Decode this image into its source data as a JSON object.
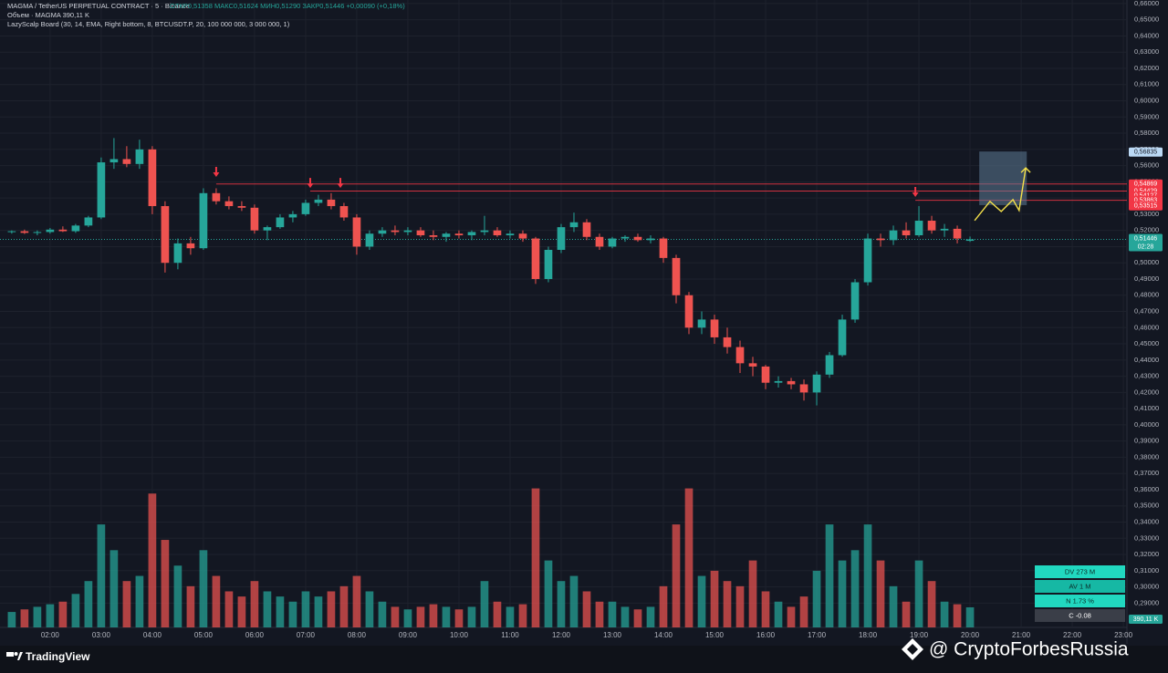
{
  "chart_data": {
    "type": "candlestick",
    "symbol": "MAGMA / TetherUS PERPETUAL CONTRACT · 5 · Binance",
    "ohlc_text": "ОТКР0,51358 МАКС0,51624 МИН0,51290 ЗАКР0,51446 +0,00090 (+0,18%)",
    "volume_text": "Объем · MAGMA 390,11 K",
    "indicator_text": "LazyScalp Board (30, 14, EMA, Right bottom, 8, BTCUSDT.P, 20, 100 000 000, 3 000 000, 1)",
    "up_color": "#26a69a",
    "down_color": "#ef5350",
    "x": [
      1.25,
      1.5,
      1.75,
      2,
      2.25,
      2.5,
      2.75,
      3,
      3.25,
      3.5,
      3.75,
      4,
      4.25,
      4.5,
      4.75,
      5,
      5.25,
      5.5,
      5.75,
      6,
      6.25,
      6.5,
      6.75,
      7,
      7.25,
      7.5,
      7.75,
      8,
      8.25,
      8.5,
      8.75,
      9,
      9.25,
      9.5,
      9.75,
      10,
      10.25,
      10.5,
      10.75,
      11,
      11.25,
      11.5,
      11.75,
      12,
      12.25,
      12.5,
      12.75,
      13,
      13.25,
      13.5,
      13.75,
      14,
      14.25,
      14.5,
      14.75,
      15,
      15.25,
      15.5,
      15.75,
      16,
      16.25,
      16.5,
      16.75,
      17,
      17.25,
      17.5,
      17.75,
      18,
      18.25,
      18.5,
      18.75,
      19,
      19.25,
      19.5,
      19.75,
      20
    ],
    "open": [
      0.519,
      0.5195,
      0.5185,
      0.519,
      0.5205,
      0.5195,
      0.523,
      0.528,
      0.562,
      0.564,
      0.561,
      0.57,
      0.535,
      0.5,
      0.512,
      0.509,
      0.543,
      0.538,
      0.535,
      0.534,
      0.52,
      0.522,
      0.528,
      0.53,
      0.537,
      0.539,
      0.535,
      0.528,
      0.51,
      0.518,
      0.52,
      0.519,
      0.52,
      0.517,
      0.516,
      0.518,
      0.517,
      0.519,
      0.52,
      0.517,
      0.518,
      0.515,
      0.49,
      0.508,
      0.522,
      0.525,
      0.516,
      0.51,
      0.515,
      0.516,
      0.514,
      0.515,
      0.503,
      0.48,
      0.46,
      0.465,
      0.454,
      0.448,
      0.438,
      0.436,
      0.426,
      0.427,
      0.425,
      0.42,
      0.431,
      0.443,
      0.465,
      0.488,
      0.515,
      0.514,
      0.52,
      0.517,
      0.526,
      0.52,
      0.521,
      0.51358
    ],
    "high": [
      0.52,
      0.5205,
      0.52,
      0.5215,
      0.5225,
      0.524,
      0.529,
      0.565,
      0.577,
      0.572,
      0.576,
      0.572,
      0.538,
      0.515,
      0.516,
      0.546,
      0.546,
      0.541,
      0.538,
      0.536,
      0.523,
      0.53,
      0.532,
      0.539,
      0.542,
      0.543,
      0.537,
      0.53,
      0.52,
      0.522,
      0.523,
      0.522,
      0.522,
      0.52,
      0.519,
      0.52,
      0.52,
      0.529,
      0.522,
      0.52,
      0.52,
      0.516,
      0.51,
      0.524,
      0.531,
      0.527,
      0.518,
      0.516,
      0.517,
      0.518,
      0.517,
      0.516,
      0.505,
      0.482,
      0.47,
      0.468,
      0.46,
      0.452,
      0.442,
      0.437,
      0.43,
      0.429,
      0.428,
      0.433,
      0.445,
      0.468,
      0.49,
      0.518,
      0.518,
      0.523,
      0.525,
      0.535,
      0.529,
      0.524,
      0.523,
      0.51624
    ],
    "low": [
      0.518,
      0.5178,
      0.517,
      0.518,
      0.519,
      0.5185,
      0.522,
      0.527,
      0.558,
      0.559,
      0.558,
      0.53,
      0.494,
      0.496,
      0.505,
      0.508,
      0.536,
      0.533,
      0.532,
      0.518,
      0.514,
      0.521,
      0.525,
      0.529,
      0.535,
      0.533,
      0.526,
      0.505,
      0.508,
      0.516,
      0.517,
      0.517,
      0.516,
      0.514,
      0.513,
      0.515,
      0.514,
      0.517,
      0.516,
      0.515,
      0.513,
      0.487,
      0.488,
      0.506,
      0.519,
      0.514,
      0.508,
      0.509,
      0.513,
      0.513,
      0.512,
      0.5,
      0.475,
      0.456,
      0.456,
      0.45,
      0.444,
      0.432,
      0.43,
      0.422,
      0.423,
      0.422,
      0.415,
      0.412,
      0.429,
      0.442,
      0.463,
      0.486,
      0.51,
      0.511,
      0.515,
      0.516,
      0.518,
      0.516,
      0.512,
      0.5129
    ],
    "close": [
      0.5195,
      0.5185,
      0.519,
      0.5205,
      0.5195,
      0.523,
      0.528,
      0.562,
      0.564,
      0.561,
      0.57,
      0.535,
      0.5,
      0.512,
      0.509,
      0.543,
      0.538,
      0.535,
      0.534,
      0.52,
      0.522,
      0.528,
      0.53,
      0.537,
      0.539,
      0.535,
      0.528,
      0.51,
      0.518,
      0.52,
      0.519,
      0.52,
      0.517,
      0.516,
      0.518,
      0.517,
      0.519,
      0.52,
      0.517,
      0.518,
      0.515,
      0.49,
      0.508,
      0.522,
      0.525,
      0.516,
      0.51,
      0.515,
      0.516,
      0.514,
      0.515,
      0.503,
      0.48,
      0.46,
      0.465,
      0.454,
      0.448,
      0.438,
      0.436,
      0.426,
      0.427,
      0.425,
      0.42,
      0.431,
      0.443,
      0.465,
      0.488,
      0.515,
      0.514,
      0.52,
      0.517,
      0.526,
      0.52,
      0.521,
      0.515,
      0.51446
    ],
    "volume": [
      300,
      350,
      400,
      450,
      500,
      650,
      900,
      2000,
      1500,
      900,
      1000,
      2600,
      1700,
      1200,
      800,
      1500,
      1000,
      700,
      600,
      900,
      700,
      600,
      500,
      700,
      600,
      700,
      800,
      1000,
      700,
      500,
      400,
      350,
      400,
      450,
      400,
      350,
      400,
      900,
      500,
      400,
      450,
      2700,
      1300,
      900,
      1000,
      700,
      500,
      500,
      400,
      350,
      400,
      800,
      2000,
      2700,
      1000,
      1100,
      900,
      800,
      1300,
      700,
      500,
      400,
      600,
      1100,
      2000,
      1300,
      1500,
      2000,
      1300,
      800,
      500,
      1300,
      900,
      500,
      450,
      390.11
    ],
    "vlim": [
      0,
      3100
    ],
    "volume_last_label": "390,11 K",
    "xlim": [
      1.02,
      23.07
    ],
    "xticks": [
      {
        "value": 2,
        "label": "02:00"
      },
      {
        "value": 3,
        "label": "03:00"
      },
      {
        "value": 4,
        "label": "04:00"
      },
      {
        "value": 5,
        "label": "05:00"
      },
      {
        "value": 6,
        "label": "06:00"
      },
      {
        "value": 7,
        "label": "07:00"
      },
      {
        "value": 8,
        "label": "08:00"
      },
      {
        "value": 9,
        "label": "09:00"
      },
      {
        "value": 10,
        "label": "10:00"
      },
      {
        "value": 11,
        "label": "11:00"
      },
      {
        "value": 12,
        "label": "12:00"
      },
      {
        "value": 13,
        "label": "13:00"
      },
      {
        "value": 14,
        "label": "14:00"
      },
      {
        "value": 15,
        "label": "15:00"
      },
      {
        "value": 16,
        "label": "16:00"
      },
      {
        "value": 17,
        "label": "17:00"
      },
      {
        "value": 18,
        "label": "18:00"
      },
      {
        "value": 19,
        "label": "19:00"
      },
      {
        "value": 20,
        "label": "20:00"
      },
      {
        "value": 21,
        "label": "21:00"
      },
      {
        "value": 22,
        "label": "22:00"
      },
      {
        "value": 23,
        "label": "23:00"
      }
    ],
    "ylim": [
      0.275,
      0.6622
    ],
    "yticks": [
      {
        "value": 0.29,
        "label": "0,29000"
      },
      {
        "value": 0.3,
        "label": "0,30000"
      },
      {
        "value": 0.31,
        "label": "0,31000"
      },
      {
        "value": 0.32,
        "label": "0,32000"
      },
      {
        "value": 0.33,
        "label": "0,33000"
      },
      {
        "value": 0.34,
        "label": "0,34000"
      },
      {
        "value": 0.35,
        "label": "0,35000"
      },
      {
        "value": 0.36,
        "label": "0,36000"
      },
      {
        "value": 0.37,
        "label": "0,37000"
      },
      {
        "value": 0.38,
        "label": "0,38000"
      },
      {
        "value": 0.39,
        "label": "0,39000"
      },
      {
        "value": 0.4,
        "label": "0,40000"
      },
      {
        "value": 0.41,
        "label": "0,41000"
      },
      {
        "value": 0.42,
        "label": "0,42000"
      },
      {
        "value": 0.43,
        "label": "0,43000"
      },
      {
        "value": 0.44,
        "label": "0,44000"
      },
      {
        "value": 0.45,
        "label": "0,45000"
      },
      {
        "value": 0.46,
        "label": "0,46000"
      },
      {
        "value": 0.47,
        "label": "0,47000"
      },
      {
        "value": 0.48,
        "label": "0,48000"
      },
      {
        "value": 0.49,
        "label": "0,49000"
      },
      {
        "value": 0.5,
        "label": "0,50000"
      },
      {
        "value": 0.51,
        "label": "0,51000"
      },
      {
        "value": 0.52,
        "label": "0,52000"
      },
      {
        "value": 0.53,
        "label": "0,53000"
      },
      {
        "value": 0.54,
        "label": "0,54000"
      },
      {
        "value": 0.55,
        "label": "0,55000"
      },
      {
        "value": 0.56,
        "label": "0,56000"
      },
      {
        "value": 0.57,
        "label": "0,57000"
      },
      {
        "value": 0.58,
        "label": "0,58000"
      },
      {
        "value": 0.59,
        "label": "0,59000"
      },
      {
        "value": 0.6,
        "label": "0,60000"
      },
      {
        "value": 0.61,
        "label": "0,61000"
      },
      {
        "value": 0.62,
        "label": "0,62000"
      },
      {
        "value": 0.63,
        "label": "0,63000"
      },
      {
        "value": 0.64,
        "label": "0,64000"
      },
      {
        "value": 0.65,
        "label": "0,65000"
      },
      {
        "value": 0.66,
        "label": "0,66000"
      }
    ],
    "levels": [
      {
        "value": 0.56835,
        "label": "0,56835",
        "color": "#bbd9f5"
      },
      {
        "value": 0.54869,
        "label": "0,54869",
        "color": "#f23645",
        "from": 5.25
      },
      {
        "value": 0.54429,
        "label": "0,54429",
        "color": "#f23645",
        "from": 7.09
      },
      {
        "value": 0.54127,
        "label": "0,54127",
        "color": "#f23645"
      },
      {
        "value": 0.53863,
        "label": "0,53863",
        "color": "#f23645",
        "from": 18.93
      },
      {
        "value": 0.53515,
        "label": "0,53515",
        "color": "#f23645"
      }
    ],
    "last_price": {
      "value": 0.51446,
      "label": "0,51446",
      "color": "#26a69a"
    },
    "countdown": "02:28",
    "signals": {
      "x": [
        5.25,
        7.09,
        7.68,
        18.93
      ],
      "y": [
        0.5564,
        0.5496,
        0.5496,
        0.544
      ]
    },
    "position_box": {
      "x": [
        20.18,
        21.11
      ],
      "top": 0.5687,
      "bottom": 0.5356
    },
    "projection": {
      "x": [
        20.09,
        20.39,
        20.61,
        20.84,
        20.96,
        21.09
      ],
      "y": [
        0.5261,
        0.5379,
        0.5317,
        0.539,
        0.5323,
        0.5586
      ]
    },
    "board": [
      {
        "text": "DV 273 M",
        "color": "#21d8c0"
      },
      {
        "text": "AV 1 M",
        "color": "#16b8a4"
      },
      {
        "text": "N 1.73 %",
        "color": "#21d8c0"
      },
      {
        "text": "C -0.08",
        "color": "#3a3e48"
      }
    ]
  },
  "footer": {
    "brand": "TradingView",
    "watermark": "@ CryptoForbesRussia"
  }
}
